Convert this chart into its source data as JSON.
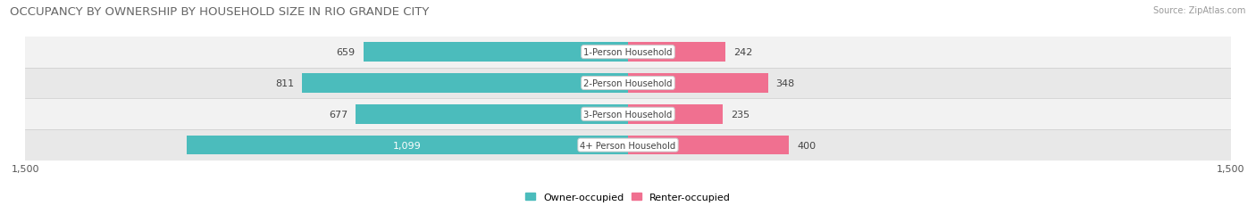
{
  "title": "OCCUPANCY BY OWNERSHIP BY HOUSEHOLD SIZE IN RIO GRANDE CITY",
  "source": "Source: ZipAtlas.com",
  "categories": [
    "1-Person Household",
    "2-Person Household",
    "3-Person Household",
    "4+ Person Household"
  ],
  "owner_values": [
    659,
    811,
    677,
    1099
  ],
  "renter_values": [
    242,
    348,
    235,
    400
  ],
  "owner_color": "#4BBCBC",
  "renter_color": "#F07090",
  "row_bg_colors_odd": "#F2F2F2",
  "row_bg_colors_even": "#E8E8E8",
  "axis_max": 1500,
  "label_fontsize": 8.0,
  "title_fontsize": 9.5,
  "bar_height": 0.62,
  "legend_owner": "Owner-occupied",
  "legend_renter": "Renter-occupied",
  "value_inside_threshold": 900
}
